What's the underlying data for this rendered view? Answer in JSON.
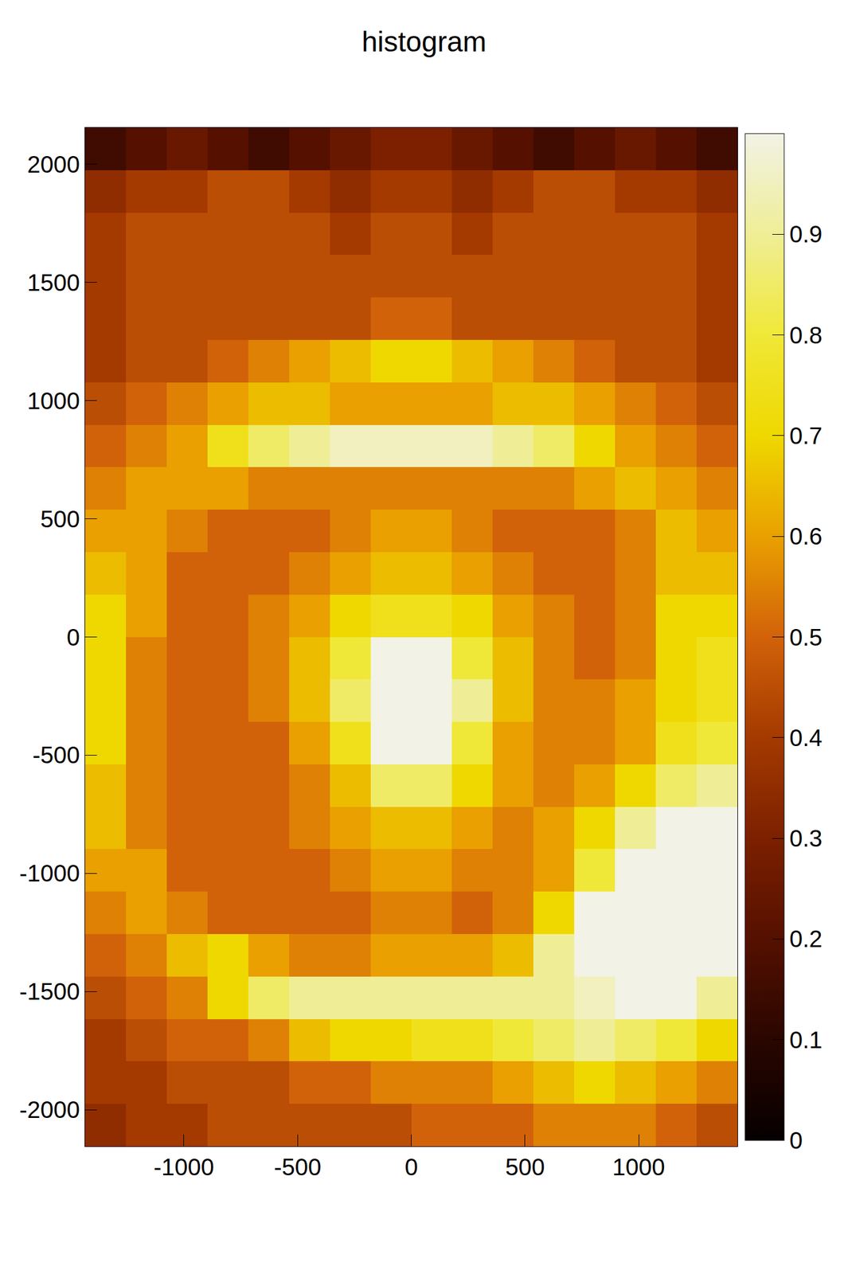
{
  "chart_data": {
    "type": "heatmap",
    "title": "histogram",
    "xlim": [
      -1434,
      1434
    ],
    "ylim": [
      -2155,
      2155
    ],
    "xticks": [
      -1000,
      -500,
      0,
      500,
      1000
    ],
    "yticks": [
      -2000,
      -1500,
      -1000,
      -500,
      0,
      500,
      1000,
      1500,
      2000
    ],
    "zlim": [
      0,
      1
    ],
    "zticks": [
      0,
      0.1,
      0.2,
      0.3,
      0.4,
      0.5,
      0.6,
      0.7,
      0.8,
      0.9
    ],
    "x_bins": [
      -1434,
      -1254.75,
      -1075.5,
      -896.25,
      -717,
      -537.75,
      -358.5,
      -179.25,
      0,
      179.25,
      358.5,
      537.75,
      717,
      896.25,
      1075.5,
      1254.75,
      1434
    ],
    "y_bins": [
      -2155,
      -1975.42,
      -1795.83,
      -1616.25,
      -1436.67,
      -1257.08,
      -1077.5,
      -897.92,
      -718.33,
      -538.75,
      -359.17,
      -179.58,
      0,
      179.58,
      359.17,
      538.75,
      718.33,
      897.92,
      1077.5,
      1257.08,
      1436.67,
      1616.25,
      1795.83,
      1975.42,
      2155
    ],
    "cells": [
      [
        0.35,
        0.4,
        0.4,
        0.45,
        0.45,
        0.45,
        0.45,
        0.45,
        0.5,
        0.5,
        0.5,
        0.55,
        0.55,
        0.55,
        0.5,
        0.45
      ],
      [
        0.4,
        0.4,
        0.45,
        0.45,
        0.45,
        0.5,
        0.5,
        0.55,
        0.55,
        0.55,
        0.6,
        0.65,
        0.7,
        0.65,
        0.6,
        0.55
      ],
      [
        0.4,
        0.45,
        0.5,
        0.5,
        0.55,
        0.65,
        0.7,
        0.7,
        0.75,
        0.75,
        0.8,
        0.85,
        0.9,
        0.85,
        0.8,
        0.7
      ],
      [
        0.45,
        0.5,
        0.55,
        0.7,
        0.85,
        0.9,
        0.9,
        0.9,
        0.9,
        0.9,
        0.9,
        0.9,
        0.95,
        1.0,
        1.0,
        0.9
      ],
      [
        0.5,
        0.55,
        0.65,
        0.7,
        0.6,
        0.55,
        0.55,
        0.6,
        0.6,
        0.6,
        0.65,
        0.9,
        1.0,
        1.0,
        1.0,
        1.0
      ],
      [
        0.55,
        0.6,
        0.55,
        0.5,
        0.5,
        0.5,
        0.5,
        0.55,
        0.55,
        0.5,
        0.55,
        0.7,
        1.0,
        1.0,
        1.0,
        1.0
      ],
      [
        0.6,
        0.6,
        0.5,
        0.5,
        0.5,
        0.5,
        0.55,
        0.6,
        0.6,
        0.55,
        0.55,
        0.6,
        0.8,
        1.0,
        1.0,
        1.0
      ],
      [
        0.65,
        0.55,
        0.5,
        0.5,
        0.5,
        0.55,
        0.6,
        0.65,
        0.65,
        0.6,
        0.55,
        0.6,
        0.7,
        0.9,
        1.0,
        1.0
      ],
      [
        0.65,
        0.55,
        0.5,
        0.5,
        0.5,
        0.55,
        0.65,
        0.85,
        0.85,
        0.7,
        0.6,
        0.55,
        0.6,
        0.7,
        0.85,
        0.9
      ],
      [
        0.7,
        0.55,
        0.5,
        0.5,
        0.5,
        0.6,
        0.75,
        1.0,
        1.0,
        0.8,
        0.6,
        0.55,
        0.55,
        0.6,
        0.75,
        0.8
      ],
      [
        0.7,
        0.55,
        0.5,
        0.5,
        0.55,
        0.65,
        0.85,
        1.0,
        1.0,
        0.9,
        0.65,
        0.55,
        0.55,
        0.6,
        0.7,
        0.75
      ],
      [
        0.7,
        0.55,
        0.5,
        0.5,
        0.55,
        0.65,
        0.8,
        1.0,
        1.0,
        0.8,
        0.65,
        0.55,
        0.5,
        0.55,
        0.7,
        0.75
      ],
      [
        0.7,
        0.6,
        0.5,
        0.5,
        0.55,
        0.6,
        0.7,
        0.75,
        0.75,
        0.7,
        0.6,
        0.55,
        0.5,
        0.55,
        0.7,
        0.7
      ],
      [
        0.65,
        0.6,
        0.5,
        0.5,
        0.5,
        0.55,
        0.6,
        0.65,
        0.65,
        0.6,
        0.55,
        0.5,
        0.5,
        0.55,
        0.65,
        0.65
      ],
      [
        0.6,
        0.6,
        0.55,
        0.5,
        0.5,
        0.5,
        0.55,
        0.6,
        0.6,
        0.55,
        0.5,
        0.5,
        0.5,
        0.55,
        0.65,
        0.6
      ],
      [
        0.55,
        0.6,
        0.6,
        0.6,
        0.55,
        0.55,
        0.55,
        0.55,
        0.55,
        0.55,
        0.55,
        0.55,
        0.6,
        0.65,
        0.6,
        0.55
      ],
      [
        0.5,
        0.55,
        0.6,
        0.75,
        0.85,
        0.9,
        0.95,
        0.95,
        0.95,
        0.95,
        0.9,
        0.85,
        0.7,
        0.6,
        0.55,
        0.5
      ],
      [
        0.45,
        0.5,
        0.55,
        0.6,
        0.65,
        0.65,
        0.6,
        0.6,
        0.6,
        0.6,
        0.65,
        0.65,
        0.6,
        0.55,
        0.5,
        0.45
      ],
      [
        0.4,
        0.45,
        0.45,
        0.5,
        0.55,
        0.6,
        0.65,
        0.7,
        0.7,
        0.65,
        0.6,
        0.55,
        0.5,
        0.45,
        0.45,
        0.4
      ],
      [
        0.4,
        0.45,
        0.45,
        0.45,
        0.45,
        0.45,
        0.45,
        0.5,
        0.5,
        0.45,
        0.45,
        0.45,
        0.45,
        0.45,
        0.45,
        0.4
      ],
      [
        0.4,
        0.45,
        0.45,
        0.45,
        0.45,
        0.45,
        0.45,
        0.45,
        0.45,
        0.45,
        0.45,
        0.45,
        0.45,
        0.45,
        0.45,
        0.4
      ],
      [
        0.4,
        0.45,
        0.45,
        0.45,
        0.45,
        0.45,
        0.4,
        0.45,
        0.45,
        0.4,
        0.45,
        0.45,
        0.45,
        0.45,
        0.45,
        0.4
      ],
      [
        0.35,
        0.4,
        0.4,
        0.45,
        0.45,
        0.4,
        0.35,
        0.4,
        0.4,
        0.35,
        0.4,
        0.45,
        0.45,
        0.4,
        0.4,
        0.35
      ],
      [
        0.15,
        0.2,
        0.25,
        0.2,
        0.15,
        0.2,
        0.25,
        0.3,
        0.3,
        0.25,
        0.2,
        0.15,
        0.2,
        0.25,
        0.2,
        0.15
      ]
    ]
  }
}
